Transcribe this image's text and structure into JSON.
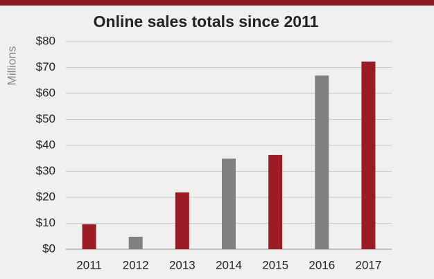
{
  "chart_data": {
    "type": "bar",
    "title": "Online sales totals since 2011",
    "y_label": "Millions",
    "categories": [
      "2011",
      "2012",
      "2013",
      "2014",
      "2015",
      "2016",
      "2017"
    ],
    "values": [
      9.6,
      4.8,
      21.9,
      34.9,
      36.3,
      66.9,
      72.3
    ],
    "colors": [
      "#9b1c22",
      "#808080",
      "#9b1c22",
      "#808080",
      "#9b1c22",
      "#808080",
      "#9b1c22"
    ],
    "ylim": [
      0,
      80
    ],
    "yticks": [
      {
        "value": 0,
        "label": "$0"
      },
      {
        "value": 10,
        "label": "$10"
      },
      {
        "value": 20,
        "label": "$20"
      },
      {
        "value": 30,
        "label": "$30"
      },
      {
        "value": 40,
        "label": "$40"
      },
      {
        "value": 50,
        "label": "$50"
      },
      {
        "value": 60,
        "label": "$60"
      },
      {
        "value": 70,
        "label": "$70"
      },
      {
        "value": 80,
        "label": "$80"
      }
    ],
    "grid": true
  }
}
